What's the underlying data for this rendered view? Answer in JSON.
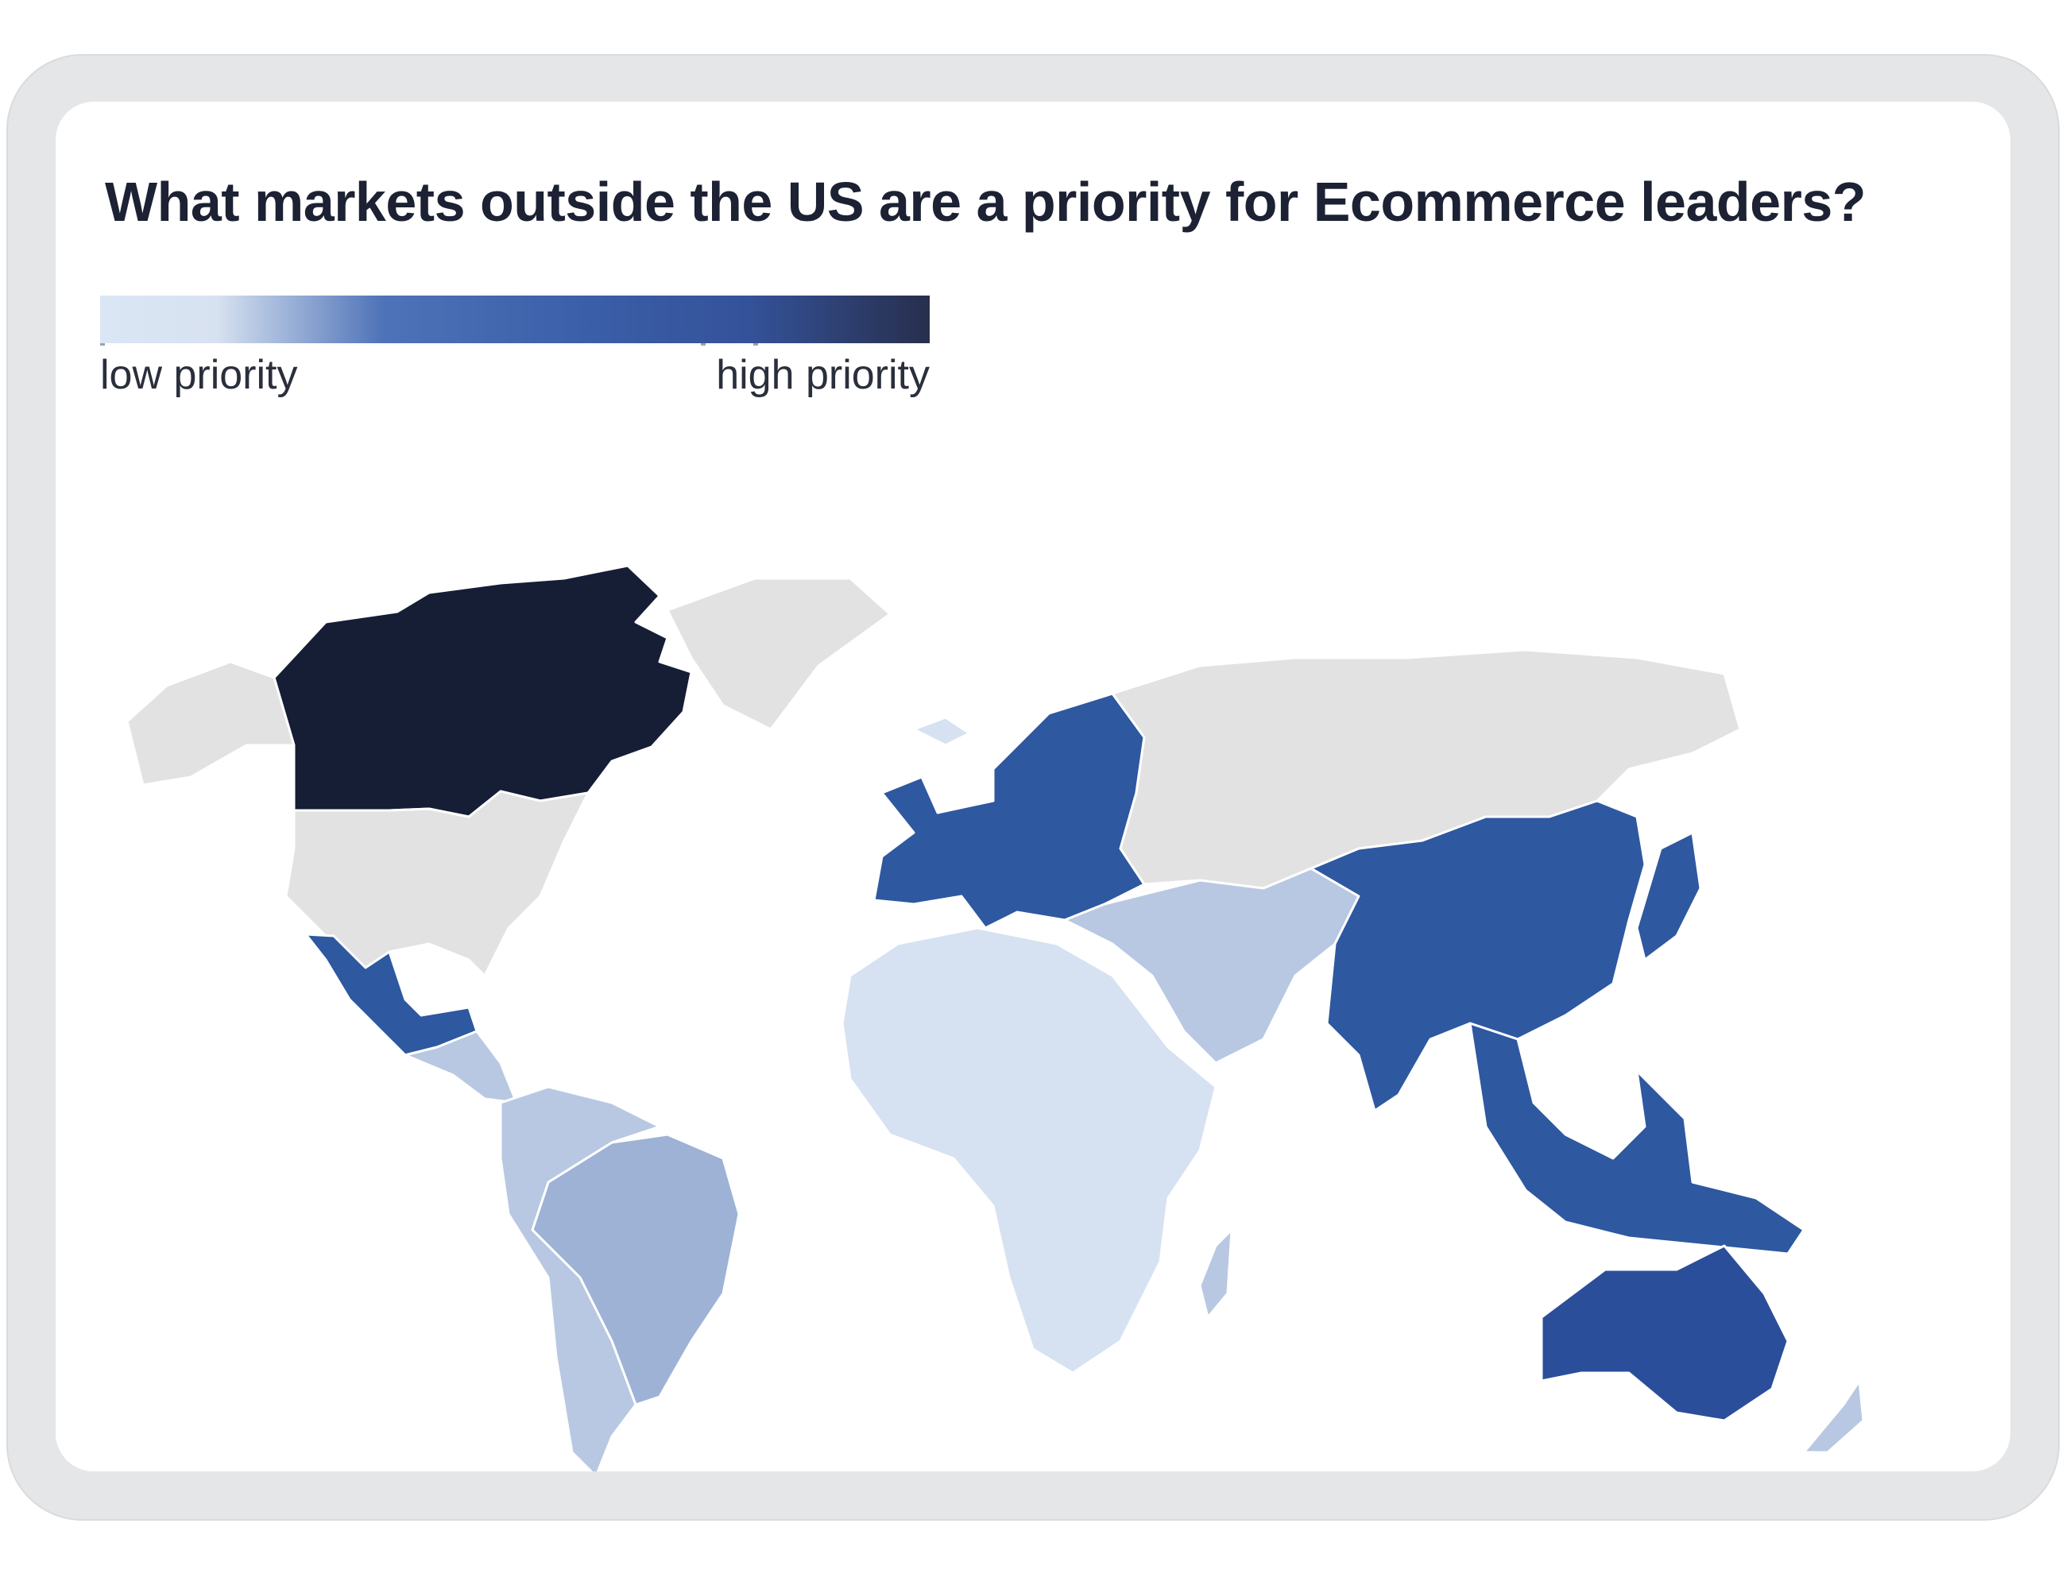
{
  "title": "What markets outside the US are a priority for Ecommerce leaders?",
  "legend": {
    "low_label": "low priority",
    "high_label": "high priority",
    "colors": [
      "#dbe6f4",
      "#4f73b8",
      "#3b5fa9",
      "#272f4c"
    ]
  },
  "scale_colors": {
    "no_data": "#e2e2e2",
    "low": "#d6e2f1",
    "medium_low": "#b8c8e2",
    "medium": "#9db2d5",
    "high": "#2e58a0",
    "higher": "#2b4e9a",
    "highest": "#161e36"
  },
  "regions": [
    {
      "name": "Canada",
      "level": "highest"
    },
    {
      "name": "United States",
      "level": "no_data"
    },
    {
      "name": "Greenland",
      "level": "no_data"
    },
    {
      "name": "Alaska",
      "level": "no_data"
    },
    {
      "name": "Mexico",
      "level": "high"
    },
    {
      "name": "Central America",
      "level": "medium_low"
    },
    {
      "name": "Brazil",
      "level": "medium"
    },
    {
      "name": "Rest of South America",
      "level": "medium_low"
    },
    {
      "name": "Europe",
      "level": "high"
    },
    {
      "name": "Iceland",
      "level": "low"
    },
    {
      "name": "Russia and Central Asia",
      "level": "no_data"
    },
    {
      "name": "Middle East",
      "level": "medium_low"
    },
    {
      "name": "Africa",
      "level": "low"
    },
    {
      "name": "Madagascar",
      "level": "medium_low"
    },
    {
      "name": "China and South Asia",
      "level": "high"
    },
    {
      "name": "Southeast Asia",
      "level": "high"
    },
    {
      "name": "Japan",
      "level": "high"
    },
    {
      "name": "Australia",
      "level": "higher"
    },
    {
      "name": "New Zealand",
      "level": "medium_low"
    }
  ]
}
